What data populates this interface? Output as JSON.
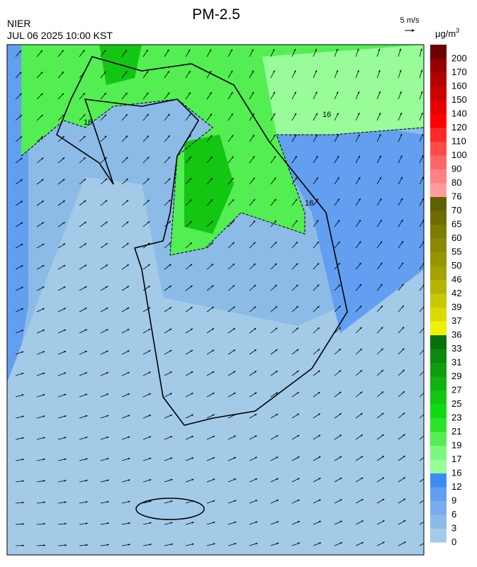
{
  "header": {
    "title": "PM-2.5",
    "source": "NIER",
    "timestamp": "JUL 06 2025 10:00 KST",
    "wind_scale": "5 m/s"
  },
  "colorbar": {
    "unit_base": "μg/m",
    "unit_exponent": "3",
    "labels": [
      0,
      3,
      6,
      9,
      12,
      16,
      17,
      19,
      21,
      23,
      25,
      27,
      29,
      31,
      33,
      36,
      37,
      39,
      42,
      46,
      50,
      55,
      60,
      65,
      70,
      76,
      80,
      90,
      100,
      110,
      120,
      140,
      150,
      160,
      170,
      200
    ],
    "colors": [
      "#a3cbe8",
      "#8cbbe8",
      "#78aeec",
      "#629ff0",
      "#3a8cf5",
      "#98fc98",
      "#7cf87c",
      "#52ee52",
      "#2ae42a",
      "#12da12",
      "#12c612",
      "#10b210",
      "#0e9e0e",
      "#0c8a0c",
      "#0a700a",
      "#f0f000",
      "#dada00",
      "#c8c800",
      "#b4b400",
      "#a2a200",
      "#969600",
      "#8a8a00",
      "#7c7c00",
      "#6e6e00",
      "#606000",
      "#ff9c9c",
      "#ff8282",
      "#ff6666",
      "#ff4a4a",
      "#ff2a2a",
      "#ff0000",
      "#e40000",
      "#cc0000",
      "#b20000",
      "#960000",
      "#6a0000"
    ]
  },
  "map": {
    "contour_labels": [
      "16",
      "16",
      "16"
    ]
  }
}
